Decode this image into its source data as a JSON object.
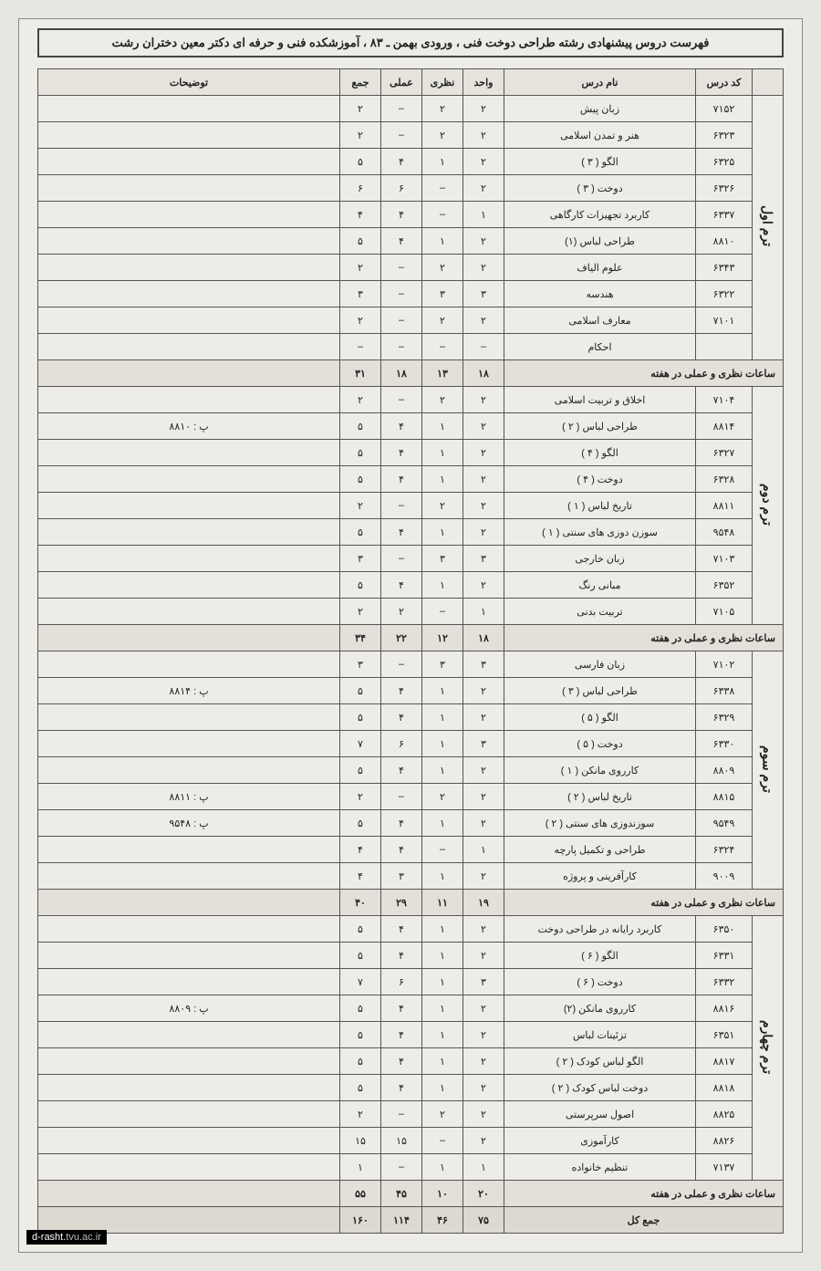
{
  "title": "فهرست دروس پیشنهادی رشته طراحی دوخت فنی ، ورودی بهمن ـ ۸۳ ، آموزشکده فنی و حرفه ای دکتر معین دختران رشت",
  "headers": {
    "term": "",
    "code": "کد درس",
    "name": "نام درس",
    "unit": "واحد",
    "theory": "نظری",
    "practical": "عملی",
    "total": "جمع",
    "notes": "توضیحات"
  },
  "subtotal_label": "ساعات نظری و عملی در هفته",
  "grand_total_label": "جمع کل",
  "grand_total": {
    "unit": "۷۵",
    "theory": "۴۶",
    "practical": "۱۱۴",
    "total": "۱۶۰"
  },
  "terms": [
    {
      "label": "ترم اول",
      "rows": [
        {
          "code": "۷۱۵۲",
          "name": "زبان پیش",
          "unit": "۲",
          "theory": "۲",
          "practical": "–",
          "total": "۲",
          "notes": ""
        },
        {
          "code": "۶۳۲۳",
          "name": "هنر و تمدن اسلامی",
          "unit": "۲",
          "theory": "۲",
          "practical": "–",
          "total": "۲",
          "notes": ""
        },
        {
          "code": "۶۳۲۵",
          "name": "الگو ( ۳ )",
          "unit": "۲",
          "theory": "۱",
          "practical": "۴",
          "total": "۵",
          "notes": ""
        },
        {
          "code": "۶۳۲۶",
          "name": "دوخت ( ۳ )",
          "unit": "۲",
          "theory": "–",
          "practical": "۶",
          "total": "۶",
          "notes": ""
        },
        {
          "code": "۶۳۳۷",
          "name": "کاربرد تجهیزات کارگاهی",
          "unit": "۱",
          "theory": "–",
          "practical": "۴",
          "total": "۴",
          "notes": ""
        },
        {
          "code": "۸۸۱۰",
          "name": "طراحی لباس (۱)",
          "unit": "۲",
          "theory": "۱",
          "practical": "۴",
          "total": "۵",
          "notes": ""
        },
        {
          "code": "۶۳۴۳",
          "name": "علوم الیاف",
          "unit": "۲",
          "theory": "۲",
          "practical": "–",
          "total": "۲",
          "notes": ""
        },
        {
          "code": "۶۳۲۲",
          "name": "هندسه",
          "unit": "۳",
          "theory": "۳",
          "practical": "–",
          "total": "۳",
          "notes": ""
        },
        {
          "code": "۷۱۰۱",
          "name": "معارف اسلامی",
          "unit": "۲",
          "theory": "۲",
          "practical": "–",
          "total": "۲",
          "notes": ""
        },
        {
          "code": "",
          "name": "احکام",
          "unit": "–",
          "theory": "–",
          "practical": "–",
          "total": "–",
          "notes": ""
        }
      ],
      "subtotal": {
        "unit": "۱۸",
        "theory": "۱۳",
        "practical": "۱۸",
        "total": "۳۱"
      }
    },
    {
      "label": "ترم دوم",
      "rows": [
        {
          "code": "۷۱۰۴",
          "name": "اخلاق و تربیت اسلامی",
          "unit": "۲",
          "theory": "۲",
          "practical": "–",
          "total": "۲",
          "notes": ""
        },
        {
          "code": "۸۸۱۴",
          "name": "طراحی لباس ( ۲ )",
          "unit": "۲",
          "theory": "۱",
          "practical": "۴",
          "total": "۵",
          "notes": "پ : ۸۸۱۰"
        },
        {
          "code": "۶۳۲۷",
          "name": "الگو ( ۴ )",
          "unit": "۲",
          "theory": "۱",
          "practical": "۴",
          "total": "۵",
          "notes": ""
        },
        {
          "code": "۶۳۲۸",
          "name": "دوخت ( ۴ )",
          "unit": "۲",
          "theory": "۱",
          "practical": "۴",
          "total": "۵",
          "notes": ""
        },
        {
          "code": "۸۸۱۱",
          "name": "تاریخ لباس ( ۱ )",
          "unit": "۲",
          "theory": "۲",
          "practical": "–",
          "total": "۲",
          "notes": ""
        },
        {
          "code": "۹۵۴۸",
          "name": "سوزن دوزی های سنتی ( ۱ )",
          "unit": "۲",
          "theory": "۱",
          "practical": "۴",
          "total": "۵",
          "notes": ""
        },
        {
          "code": "۷۱۰۳",
          "name": "زبان خارجی",
          "unit": "۳",
          "theory": "۳",
          "practical": "–",
          "total": "۳",
          "notes": ""
        },
        {
          "code": "۶۳۵۲",
          "name": "مبانی رنگ",
          "unit": "۲",
          "theory": "۱",
          "practical": "۴",
          "total": "۵",
          "notes": ""
        },
        {
          "code": "۷۱۰۵",
          "name": "تربیت بدنی",
          "unit": "۱",
          "theory": "–",
          "practical": "۲",
          "total": "۲",
          "notes": ""
        }
      ],
      "subtotal": {
        "unit": "۱۸",
        "theory": "۱۲",
        "practical": "۲۲",
        "total": "۳۴"
      }
    },
    {
      "label": "ترم سوم",
      "rows": [
        {
          "code": "۷۱۰۲",
          "name": "زبان فارسی",
          "unit": "۳",
          "theory": "۳",
          "practical": "–",
          "total": "۳",
          "notes": ""
        },
        {
          "code": "۶۳۳۸",
          "name": "طراحی لباس ( ۳ )",
          "unit": "۲",
          "theory": "۱",
          "practical": "۴",
          "total": "۵",
          "notes": "پ : ۸۸۱۴"
        },
        {
          "code": "۶۳۲۹",
          "name": "الگو ( ۵ )",
          "unit": "۲",
          "theory": "۱",
          "practical": "۴",
          "total": "۵",
          "notes": ""
        },
        {
          "code": "۶۳۳۰",
          "name": "دوخت ( ۵ )",
          "unit": "۳",
          "theory": "۱",
          "practical": "۶",
          "total": "۷",
          "notes": ""
        },
        {
          "code": "۸۸۰۹",
          "name": "کارروی مانکن ( ۱ )",
          "unit": "۲",
          "theory": "۱",
          "practical": "۴",
          "total": "۵",
          "notes": ""
        },
        {
          "code": "۸۸۱۵",
          "name": "تاریخ لباس ( ۲ )",
          "unit": "۲",
          "theory": "۲",
          "practical": "–",
          "total": "۲",
          "notes": "پ : ۸۸۱۱"
        },
        {
          "code": "۹۵۴۹",
          "name": "سوزندوزی های سنتی ( ۲ )",
          "unit": "۲",
          "theory": "۱",
          "practical": "۴",
          "total": "۵",
          "notes": "پ : ۹۵۴۸"
        },
        {
          "code": "۶۳۲۴",
          "name": "طراحی و تکمیل پارچه",
          "unit": "۱",
          "theory": "–",
          "practical": "۴",
          "total": "۴",
          "notes": ""
        },
        {
          "code": "۹۰۰۹",
          "name": "کارآفرینی و پروژه",
          "unit": "۲",
          "theory": "۱",
          "practical": "۳",
          "total": "۴",
          "notes": ""
        }
      ],
      "subtotal": {
        "unit": "۱۹",
        "theory": "۱۱",
        "practical": "۲۹",
        "total": "۴۰"
      }
    },
    {
      "label": "ترم چهارم",
      "rows": [
        {
          "code": "۶۳۵۰",
          "name": "کاربرد رایانه در طراحی دوخت",
          "unit": "۲",
          "theory": "۱",
          "practical": "۴",
          "total": "۵",
          "notes": ""
        },
        {
          "code": "۶۳۳۱",
          "name": "الگو ( ۶ )",
          "unit": "۲",
          "theory": "۱",
          "practical": "۴",
          "total": "۵",
          "notes": ""
        },
        {
          "code": "۶۳۳۲",
          "name": "دوخت ( ۶ )",
          "unit": "۳",
          "theory": "۱",
          "practical": "۶",
          "total": "۷",
          "notes": ""
        },
        {
          "code": "۸۸۱۶",
          "name": "کارروی مانکن (۲)",
          "unit": "۲",
          "theory": "۱",
          "practical": "۴",
          "total": "۵",
          "notes": "پ : ۸۸۰۹"
        },
        {
          "code": "۶۳۵۱",
          "name": "تزئینات لباس",
          "unit": "۲",
          "theory": "۱",
          "practical": "۴",
          "total": "۵",
          "notes": ""
        },
        {
          "code": "۸۸۱۷",
          "name": "الگو لباس کودک ( ۲ )",
          "unit": "۲",
          "theory": "۱",
          "practical": "۴",
          "total": "۵",
          "notes": ""
        },
        {
          "code": "۸۸۱۸",
          "name": "دوخت لباس کودک ( ۲ )",
          "unit": "۲",
          "theory": "۱",
          "practical": "۴",
          "total": "۵",
          "notes": ""
        },
        {
          "code": "۸۸۲۵",
          "name": "اصول سرپرستی",
          "unit": "۲",
          "theory": "۲",
          "practical": "–",
          "total": "۲",
          "notes": ""
        },
        {
          "code": "۸۸۲۶",
          "name": "کارآموزی",
          "unit": "۲",
          "theory": "–",
          "practical": "۱۵",
          "total": "۱۵",
          "notes": ""
        },
        {
          "code": "۷۱۳۷",
          "name": "تنظیم خانواده",
          "unit": "۱",
          "theory": "۱",
          "practical": "–",
          "total": "۱",
          "notes": ""
        }
      ],
      "subtotal": {
        "unit": "۲۰",
        "theory": "۱۰",
        "practical": "۴۵",
        "total": "۵۵"
      }
    }
  ],
  "watermark": {
    "sub": "d-rasht.",
    "dom": "tvu.ac.ir"
  },
  "col_widths": {
    "term": "34px",
    "code": "62px",
    "name": "210px",
    "unit": "45px",
    "theory": "45px",
    "practical": "45px",
    "total": "45px",
    "notes": "auto"
  }
}
